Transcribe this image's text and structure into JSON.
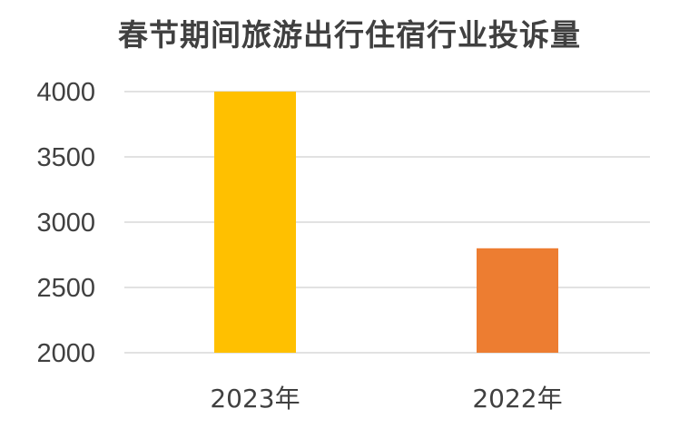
{
  "chart_data": {
    "type": "bar",
    "title": "春节期间旅游出行住宿行业投诉量",
    "categories": [
      "2023年",
      "2022年"
    ],
    "values": [
      4000,
      2800
    ],
    "colors": [
      "#FFC000",
      "#ED7D31"
    ],
    "ylim": [
      2000,
      4000
    ],
    "yticks": [
      "2000",
      "2500",
      "3000",
      "3500",
      "4000"
    ],
    "grid": true,
    "legend": "none",
    "xlabel": "",
    "ylabel": ""
  }
}
